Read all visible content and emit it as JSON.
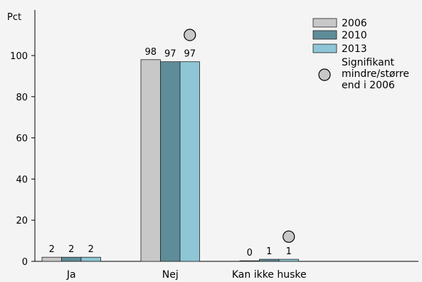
{
  "chart_data": {
    "type": "bar",
    "ylabel": "Pct",
    "ylim": [
      0,
      110
    ],
    "yticks": [
      0,
      20,
      40,
      60,
      80,
      100
    ],
    "categories": [
      "Ja",
      "Nej",
      "Kan ikke huske"
    ],
    "series": [
      {
        "name": "2006",
        "values": [
          2,
          98,
          0
        ],
        "labels": [
          "2",
          "98",
          "0"
        ],
        "color": "#c8c8c8"
      },
      {
        "name": "2010",
        "values": [
          2,
          97,
          1
        ],
        "labels": [
          "2",
          "97",
          "1"
        ],
        "color": "#5f8c99"
      },
      {
        "name": "2013",
        "values": [
          2,
          97,
          1
        ],
        "labels": [
          "2",
          "97",
          "1"
        ],
        "color": "#8ec6d6"
      }
    ],
    "significance_markers": [
      {
        "category": "Nej",
        "value": 110
      },
      {
        "category": "Kan ikke huske",
        "value": 12
      }
    ],
    "legend": {
      "placement": "top-right",
      "significance_label": [
        "Signifikant",
        "mindre/større",
        "end i 2006"
      ]
    },
    "marker_color": "#c8c8c8",
    "grid": false
  }
}
